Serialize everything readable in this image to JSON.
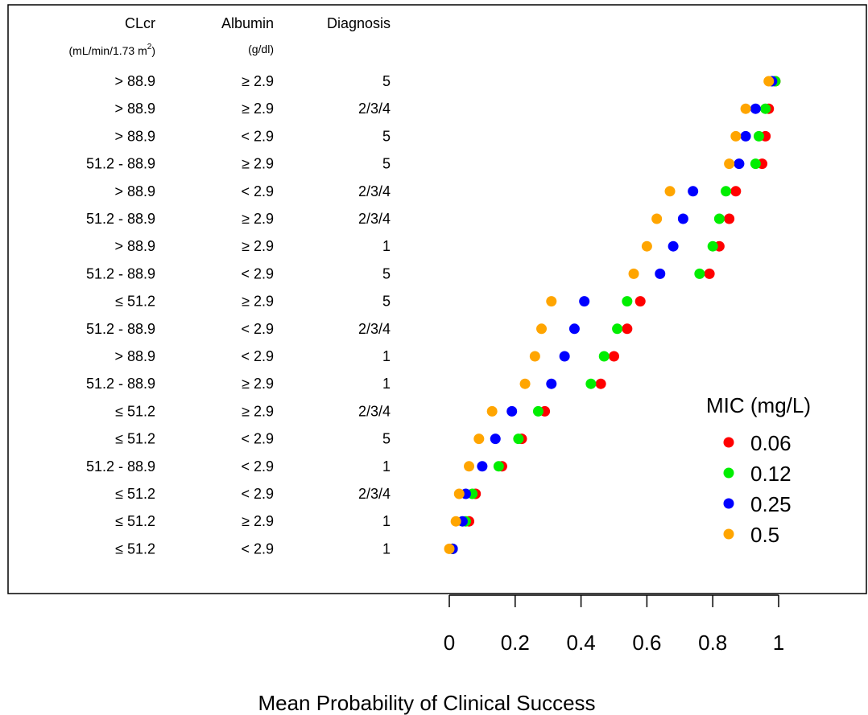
{
  "chart_data": {
    "type": "scatter",
    "xlabel": "Mean Probability of Clinical Success",
    "xlim": [
      0,
      1
    ],
    "x_ticks": [
      "0",
      "0.2",
      "0.4",
      "0.6",
      "0.8",
      "1"
    ],
    "x_tick_values": [
      0,
      0.2,
      0.4,
      0.6,
      0.8,
      1
    ],
    "columns": [
      {
        "key": "clcr",
        "header": "CLcr",
        "subheader": "(mL/min/1.73 m",
        "subheader_sup": "2",
        "subheader_end": ")"
      },
      {
        "key": "albumin",
        "header": "Albumin",
        "subheader": "(g/dl)"
      },
      {
        "key": "diagnosis",
        "header": "Diagnosis",
        "subheader": ""
      }
    ],
    "rows": [
      {
        "clcr": "> 88.9",
        "albumin": "≥ 2.9",
        "diagnosis": "5"
      },
      {
        "clcr": "> 88.9",
        "albumin": "≥ 2.9",
        "diagnosis": "2/3/4"
      },
      {
        "clcr": "> 88.9",
        "albumin": "< 2.9",
        "diagnosis": "5"
      },
      {
        "clcr": "51.2 - 88.9",
        "albumin": "≥ 2.9",
        "diagnosis": "5"
      },
      {
        "clcr": "> 88.9",
        "albumin": "< 2.9",
        "diagnosis": "2/3/4"
      },
      {
        "clcr": "51.2 - 88.9",
        "albumin": "≥ 2.9",
        "diagnosis": "2/3/4"
      },
      {
        "clcr": "> 88.9",
        "albumin": "≥ 2.9",
        "diagnosis": "1"
      },
      {
        "clcr": "51.2 - 88.9",
        "albumin": "< 2.9",
        "diagnosis": "5"
      },
      {
        "clcr": "≤ 51.2",
        "albumin": "≥ 2.9",
        "diagnosis": "5"
      },
      {
        "clcr": "51.2 - 88.9",
        "albumin": "< 2.9",
        "diagnosis": "2/3/4"
      },
      {
        "clcr": "> 88.9",
        "albumin": "< 2.9",
        "diagnosis": "1"
      },
      {
        "clcr": "51.2 - 88.9",
        "albumin": "≥ 2.9",
        "diagnosis": "1"
      },
      {
        "clcr": "≤ 51.2",
        "albumin": "≥ 2.9",
        "diagnosis": "2/3/4"
      },
      {
        "clcr": "≤ 51.2",
        "albumin": "< 2.9",
        "diagnosis": "5"
      },
      {
        "clcr": "51.2 - 88.9",
        "albumin": "< 2.9",
        "diagnosis": "1"
      },
      {
        "clcr": "≤ 51.2",
        "albumin": "< 2.9",
        "diagnosis": "2/3/4"
      },
      {
        "clcr": "≤ 51.2",
        "albumin": "≥ 2.9",
        "diagnosis": "1"
      },
      {
        "clcr": "≤ 51.2",
        "albumin": "< 2.9",
        "diagnosis": "1"
      }
    ],
    "legend": {
      "title": "MIC (mg/L)",
      "placement": "bottom-right"
    },
    "series": [
      {
        "name": "0.06",
        "color": "#ff0000",
        "values": [
          0.99,
          0.97,
          0.96,
          0.95,
          0.87,
          0.85,
          0.82,
          0.79,
          0.58,
          0.54,
          0.5,
          0.46,
          0.29,
          0.22,
          0.16,
          0.08,
          0.06,
          0.01
        ]
      },
      {
        "name": "0.12",
        "color": "#00ee00",
        "values": [
          0.99,
          0.96,
          0.94,
          0.93,
          0.84,
          0.82,
          0.8,
          0.76,
          0.54,
          0.51,
          0.47,
          0.43,
          0.27,
          0.21,
          0.15,
          0.07,
          0.05,
          0.01
        ]
      },
      {
        "name": "0.25",
        "color": "#0000ff",
        "values": [
          0.98,
          0.93,
          0.9,
          0.88,
          0.74,
          0.71,
          0.68,
          0.64,
          0.41,
          0.38,
          0.35,
          0.31,
          0.19,
          0.14,
          0.1,
          0.05,
          0.04,
          0.01
        ]
      },
      {
        "name": "0.5",
        "color": "#ffa500",
        "values": [
          0.97,
          0.9,
          0.87,
          0.85,
          0.67,
          0.63,
          0.6,
          0.56,
          0.31,
          0.28,
          0.26,
          0.23,
          0.13,
          0.09,
          0.06,
          0.03,
          0.02,
          0.0
        ]
      }
    ]
  }
}
